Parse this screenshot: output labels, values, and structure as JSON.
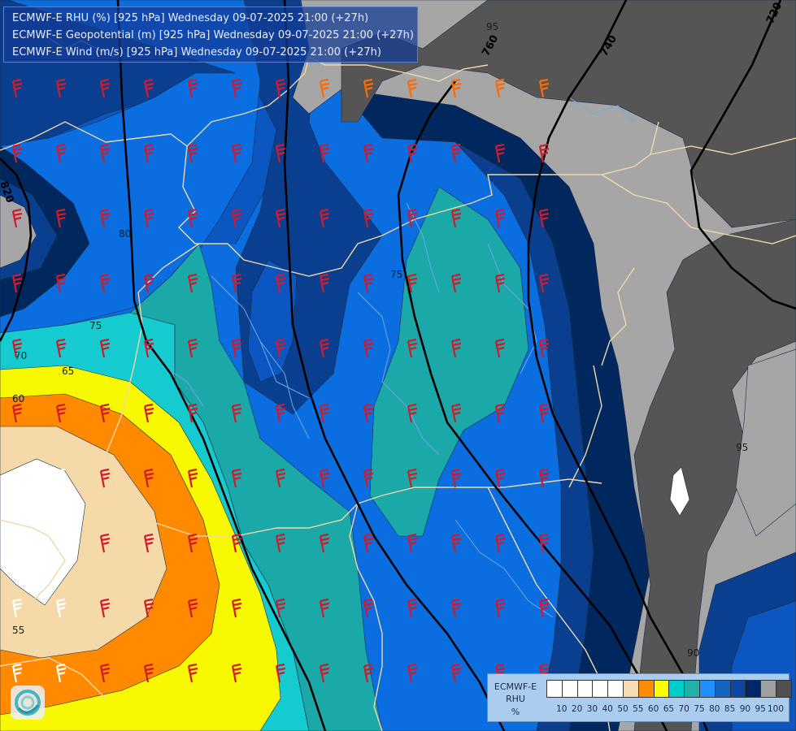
{
  "header": {
    "lines": [
      "ECMWF-E RHU (%) [925 hPa] Wednesday 09-07-2025 21:00 (+27h)",
      "ECMWF-E Geopotential (m) [925 hPa] Wednesday 09-07-2025 21:00 (+27h)",
      "ECMWF-E Wind (m/s) [925 hPa] Wednesday 09-07-2025 21:00 (+27h)"
    ]
  },
  "legend": {
    "title_lines": [
      "ECMWF-E",
      "RHU",
      "%"
    ],
    "tick_labels": [
      "10",
      "20",
      "30",
      "40",
      "50",
      "55",
      "60",
      "65",
      "70",
      "75",
      "80",
      "85",
      "90",
      "95",
      "100"
    ],
    "colors": [
      "#ffffff",
      "#ffffff",
      "#ffffff",
      "#ffffff",
      "#ffffff",
      "#f5deb3",
      "#ff8c00",
      "#ffff00",
      "#00cccc",
      "#20b2aa",
      "#1e90ff",
      "#1565c0",
      "#0d47a1",
      "#002868",
      "#a0a0a0",
      "#505050"
    ]
  },
  "palette": {
    "white": "#ffffff",
    "wheat": "#f5d9a8",
    "orange": "#ff8a00",
    "yellow": "#f8f800",
    "cyan": "#16cbd0",
    "teal": "#1aa8a8",
    "blue": "#0a6ee0",
    "blue_mid": "#0b56c0",
    "blue_dark": "#0a3f90",
    "navy": "#00285e",
    "grey_light": "#a6a6a6",
    "grey_dark": "#555555",
    "border_line": "#f0d8a8",
    "river_line": "#6fa8e8"
  },
  "contour_labels": {
    "rhu": [
      "95",
      "80",
      "75",
      "70",
      "65",
      "60",
      "55",
      "75",
      "95",
      "90"
    ],
    "geopotential": [
      "760",
      "740",
      "720",
      "820"
    ]
  },
  "map_layers": {
    "wind_barbs": "wind barbs at 925 hPa",
    "country_borders": "country borders",
    "rivers": "rivers"
  }
}
